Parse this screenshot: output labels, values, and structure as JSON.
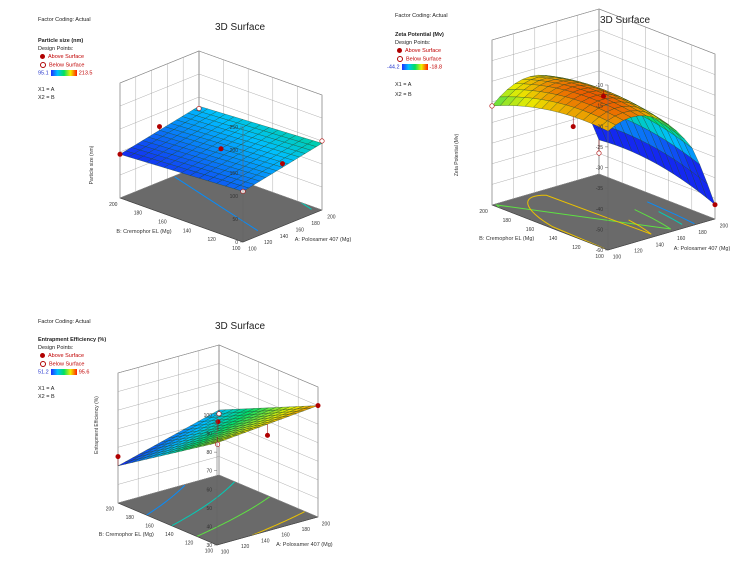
{
  "charts": [
    {
      "factor_coding": "Factor Coding: Actual",
      "response_label": "Particle size  (nm)",
      "design_points": "Design Points:",
      "above": "Above Surface",
      "below": "Below Surface",
      "cmin": "95.1",
      "cmax": "213.5",
      "x1": "X1 = A",
      "x2": "X2 = B",
      "title": "3D Surface"
    },
    {
      "factor_coding": "Factor Coding: Actual",
      "response_label": "Zeta Potential  (Mv)",
      "design_points": "Design Points:",
      "above": "Above Surface",
      "below": "Below Surface",
      "cmin": "-44.2",
      "cmax": "-18.8",
      "x1": "X1 = A",
      "x2": "X2 = B",
      "title": "3D Surface"
    },
    {
      "factor_coding": "Factor Coding: Actual",
      "response_label": "Entrapment Efficiency (%)",
      "design_points": "Design Points:",
      "above": "Above Surface",
      "below": "Below Surface",
      "cmin": "51.2",
      "cmax": "95.6",
      "x1": "X1 = A",
      "x2": "X2 = B",
      "title": "3D Surface"
    }
  ],
  "chart_data": [
    {
      "type": "surface",
      "title": "3D Surface",
      "zlabel": "Particle size  (nm)",
      "xlabel": "A: Poloxamer 407 (Mg)",
      "ylabel": "B: Cremophor EL (Mg)",
      "xrange": [
        100,
        200
      ],
      "yrange": [
        100,
        200
      ],
      "xticks": [
        "100",
        "120",
        "140",
        "160",
        "180",
        "200"
      ],
      "yticks": [
        "100",
        "120",
        "140",
        "160",
        "180",
        "200"
      ],
      "zticks": [
        "0",
        "50",
        "100",
        "150",
        "200",
        "250"
      ],
      "zlim": [
        0,
        250
      ],
      "color_range": [
        95.1,
        213.5
      ]
    },
    {
      "type": "surface",
      "title": "3D Surface",
      "zlabel": "Zeta Potential  (Mv)",
      "xlabel": "A: Poloxamer 407 (Mg)",
      "ylabel": "B: Cremophor EL (Mg)",
      "xrange": [
        100,
        200
      ],
      "yrange": [
        100,
        200
      ],
      "xticks": [
        "100",
        "120",
        "140",
        "160",
        "180",
        "200"
      ],
      "yticks": [
        "100",
        "120",
        "140",
        "160",
        "180",
        "200"
      ],
      "zticks": [
        "-60",
        "-50",
        "-40",
        "-35",
        "-30",
        "-25",
        "-20",
        "-15",
        "-10"
      ],
      "zlim": [
        -60,
        -10
      ],
      "color_range": [
        -44.2,
        -18.8
      ]
    },
    {
      "type": "surface",
      "title": "3D Surface",
      "zlabel": "Entrapment Efficiency (%)",
      "xlabel": "A: Poloxamer 407 (Mg)",
      "ylabel": "B: Cremophor EL (Mg)",
      "xrange": [
        100,
        200
      ],
      "yrange": [
        100,
        200
      ],
      "xticks": [
        "100",
        "120",
        "140",
        "160",
        "180",
        "200"
      ],
      "yticks": [
        "100",
        "120",
        "140",
        "160",
        "180",
        "200"
      ],
      "zticks": [
        "30",
        "40",
        "50",
        "60",
        "70",
        "80",
        "90",
        "100"
      ],
      "zlim": [
        30,
        100
      ],
      "color_range": [
        51.2,
        95.6
      ]
    }
  ]
}
